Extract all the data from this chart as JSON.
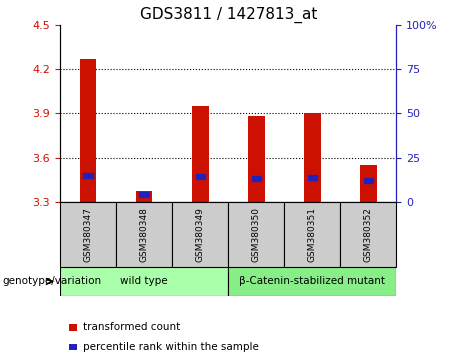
{
  "title": "GDS3811 / 1427813_at",
  "samples": [
    "GSM380347",
    "GSM380348",
    "GSM380349",
    "GSM380350",
    "GSM380351",
    "GSM380352"
  ],
  "transformed_counts": [
    4.27,
    3.37,
    3.95,
    3.88,
    3.9,
    3.55
  ],
  "percentile_ranks": [
    15.0,
    4.0,
    14.5,
    13.0,
    13.5,
    12.0
  ],
  "ylim_left": [
    3.3,
    4.5
  ],
  "ylim_right": [
    0,
    100
  ],
  "yticks_left": [
    3.3,
    3.6,
    3.9,
    4.2,
    4.5
  ],
  "yticks_right": [
    0,
    25,
    50,
    75,
    100
  ],
  "baseline": 3.3,
  "bar_color": "#CC1100",
  "blue_color": "#2222BB",
  "groups": [
    {
      "label": "wild type",
      "indices": [
        0,
        1,
        2
      ],
      "color": "#AAFFAA"
    },
    {
      "label": "β-Catenin-stabilized mutant",
      "indices": [
        3,
        4,
        5
      ],
      "color": "#88EE88"
    }
  ],
  "legend_items": [
    {
      "label": "transformed count",
      "color": "#CC1100"
    },
    {
      "label": "percentile rank within the sample",
      "color": "#2222BB"
    }
  ],
  "xlabel_group": "genotype/variation",
  "bar_width": 0.3,
  "tick_label_color_left": "#CC1100",
  "tick_label_color_right": "#2222BB",
  "title_fontsize": 11,
  "sample_box_color": "#CCCCCC",
  "plot_bg": "#FFFFFF"
}
